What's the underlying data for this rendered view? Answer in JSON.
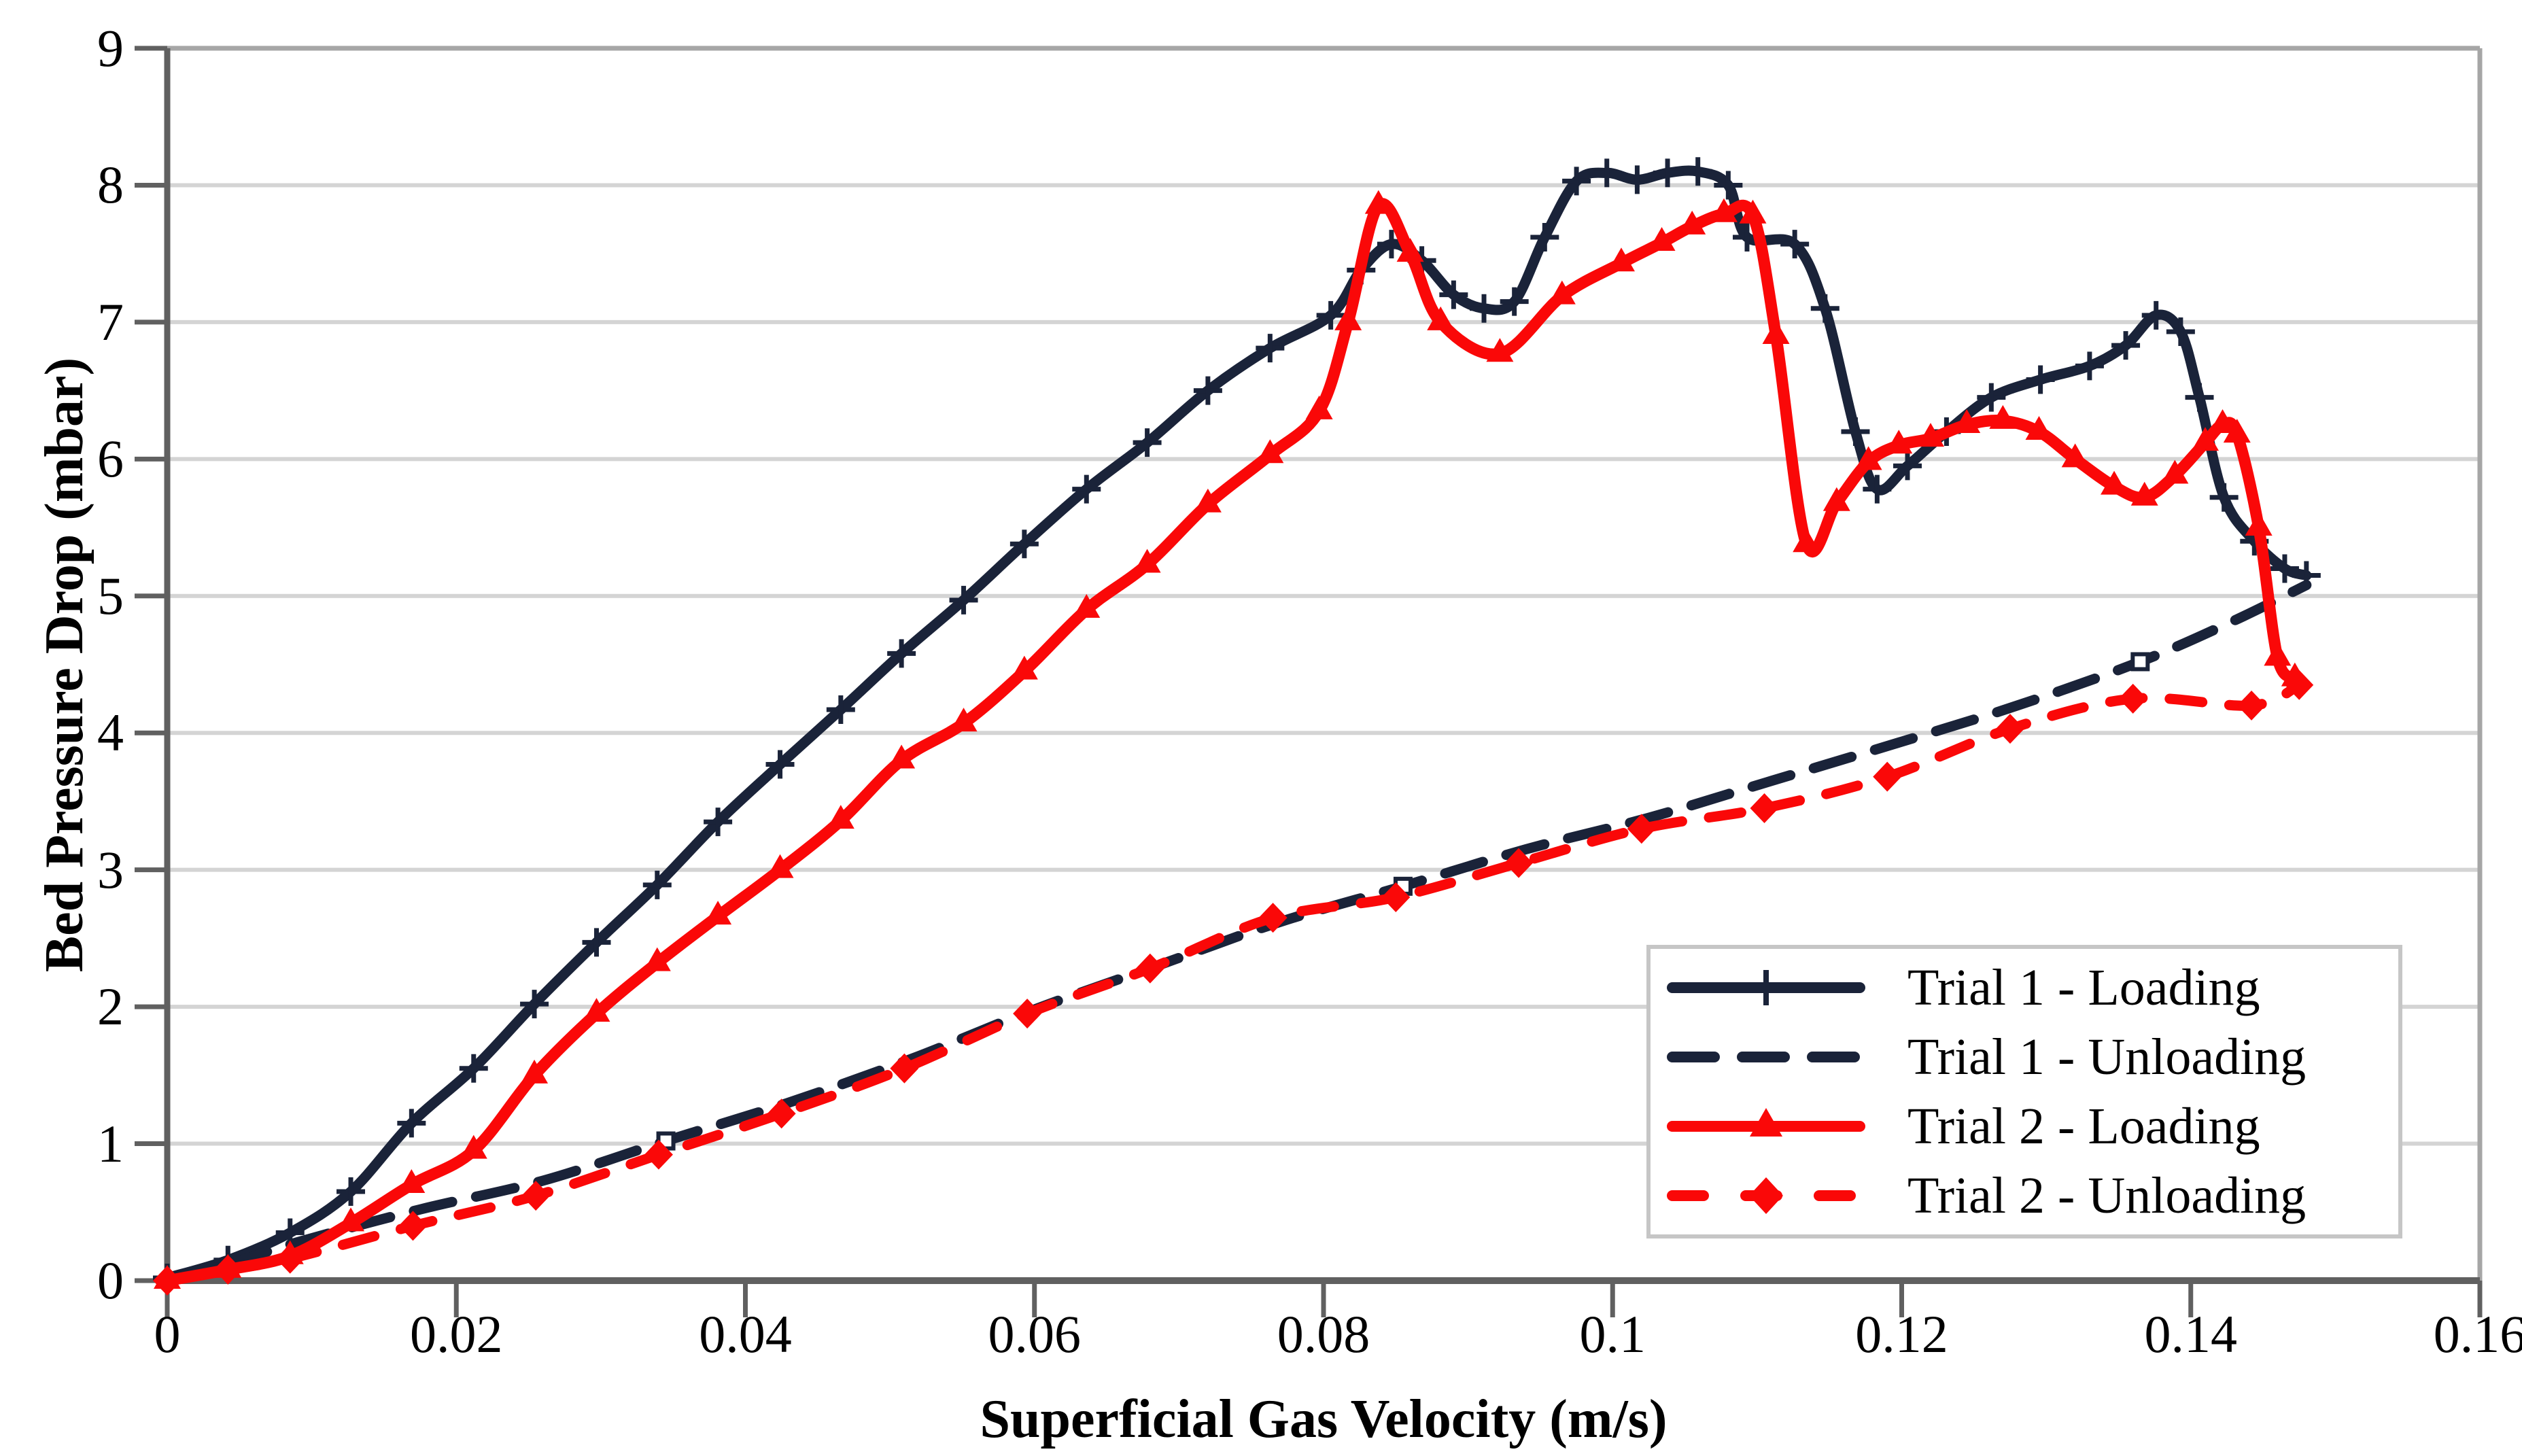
{
  "page": {
    "background": "#ffffff"
  },
  "colors": {
    "trial1": "#1a2339",
    "trial2": "#fa0808",
    "gridline": "#d4d4d4",
    "plot_border": "#a6a6a6",
    "axis_line": "#606060",
    "legend_border": "#c6c6c6",
    "text": "#000000"
  },
  "chart_data": {
    "type": "line",
    "title": "",
    "xlabel": "Superficial Gas Velocity (m/s)",
    "ylabel": "Bed Pressure Drop (mbar)",
    "xlim": [
      0,
      0.16
    ],
    "ylim": [
      0,
      9
    ],
    "x_ticks": [
      0,
      0.02,
      0.04,
      0.06,
      0.08,
      0.1,
      0.12,
      0.14,
      0.16
    ],
    "x_tick_labels": [
      "0",
      "0.02",
      "0.04",
      "0.06",
      "0.08",
      "0.1",
      "0.12",
      "0.14",
      "0.16"
    ],
    "y_ticks": [
      0,
      1,
      2,
      3,
      4,
      5,
      6,
      7,
      8,
      9
    ],
    "y_tick_labels": [
      "0",
      "1",
      "2",
      "3",
      "4",
      "5",
      "6",
      "7",
      "8",
      "9"
    ],
    "grid": true,
    "legend_position": "inside lower right",
    "series": [
      {
        "name": "Trial 1 - Loading",
        "color": "#1a2339",
        "line_style": "solid",
        "marker": "plus",
        "marker_every": 1,
        "marker_offset": 0,
        "points": [
          [
            0,
            0.02
          ],
          [
            0.0042,
            0.15
          ],
          [
            0.0085,
            0.35
          ],
          [
            0.0127,
            0.65
          ],
          [
            0.0169,
            1.15
          ],
          [
            0.0212,
            1.55
          ],
          [
            0.0254,
            2.02
          ],
          [
            0.0297,
            2.47
          ],
          [
            0.0339,
            2.89
          ],
          [
            0.0381,
            3.35
          ],
          [
            0.0424,
            3.77
          ],
          [
            0.0466,
            4.17
          ],
          [
            0.0508,
            4.58
          ],
          [
            0.0551,
            4.97
          ],
          [
            0.0593,
            5.38
          ],
          [
            0.0636,
            5.78
          ],
          [
            0.0678,
            6.12
          ],
          [
            0.072,
            6.5
          ],
          [
            0.0763,
            6.81
          ],
          [
            0.0805,
            7.05
          ],
          [
            0.0826,
            7.38
          ],
          [
            0.0847,
            7.57
          ],
          [
            0.0868,
            7.45
          ],
          [
            0.089,
            7.2
          ],
          [
            0.0911,
            7.1
          ],
          [
            0.0932,
            7.15
          ],
          [
            0.0953,
            7.62
          ],
          [
            0.0975,
            8.03
          ],
          [
            0.0996,
            8.09
          ],
          [
            0.1017,
            8.04
          ],
          [
            0.1038,
            8.09
          ],
          [
            0.1059,
            8.1
          ],
          [
            0.108,
            8.0
          ],
          [
            0.1093,
            7.62
          ],
          [
            0.1126,
            7.57
          ],
          [
            0.1147,
            7.1
          ],
          [
            0.1168,
            6.2
          ],
          [
            0.1183,
            5.78
          ],
          [
            0.1204,
            5.95
          ],
          [
            0.1231,
            6.2
          ],
          [
            0.1262,
            6.45
          ],
          [
            0.1296,
            6.58
          ],
          [
            0.133,
            6.68
          ],
          [
            0.1355,
            6.83
          ],
          [
            0.1376,
            7.05
          ],
          [
            0.1393,
            6.93
          ],
          [
            0.1406,
            6.45
          ],
          [
            0.1423,
            5.72
          ],
          [
            0.1444,
            5.4
          ],
          [
            0.1465,
            5.2
          ],
          [
            0.148,
            5.15
          ]
        ]
      },
      {
        "name": "Trial 1 - Unloading",
        "color": "#1a2339",
        "line_style": "dashed",
        "marker": "square-open",
        "marker_every": 6,
        "marker_offset": 5,
        "points": [
          [
            0,
            0.02
          ],
          [
            0.0045,
            0.13
          ],
          [
            0.009,
            0.28
          ],
          [
            0.0175,
            0.52
          ],
          [
            0.026,
            0.73
          ],
          [
            0.0345,
            1.02
          ],
          [
            0.043,
            1.3
          ],
          [
            0.0515,
            1.62
          ],
          [
            0.06,
            1.98
          ],
          [
            0.0685,
            2.3
          ],
          [
            0.077,
            2.62
          ],
          [
            0.0855,
            2.88
          ],
          [
            0.094,
            3.15
          ],
          [
            0.1025,
            3.38
          ],
          [
            0.111,
            3.65
          ],
          [
            0.1195,
            3.92
          ],
          [
            0.128,
            4.2
          ],
          [
            0.1365,
            4.52
          ],
          [
            0.143,
            4.82
          ],
          [
            0.148,
            5.08
          ]
        ]
      },
      {
        "name": "Trial 2 - Loading",
        "color": "#fa0808",
        "line_style": "solid",
        "marker": "triangle",
        "marker_every": 1,
        "marker_offset": 0,
        "points": [
          [
            0,
            0.0
          ],
          [
            0.0042,
            0.08
          ],
          [
            0.0085,
            0.18
          ],
          [
            0.0127,
            0.42
          ],
          [
            0.0169,
            0.7
          ],
          [
            0.0212,
            0.95
          ],
          [
            0.0254,
            1.5
          ],
          [
            0.0297,
            1.95
          ],
          [
            0.0339,
            2.32
          ],
          [
            0.0381,
            2.66
          ],
          [
            0.0424,
            3.0
          ],
          [
            0.0466,
            3.36
          ],
          [
            0.0508,
            3.8
          ],
          [
            0.0551,
            4.07
          ],
          [
            0.0593,
            4.45
          ],
          [
            0.0636,
            4.9
          ],
          [
            0.0678,
            5.23
          ],
          [
            0.072,
            5.67
          ],
          [
            0.0763,
            6.03
          ],
          [
            0.0797,
            6.35
          ],
          [
            0.0817,
            7.0
          ],
          [
            0.0838,
            7.85
          ],
          [
            0.086,
            7.5
          ],
          [
            0.0881,
            7.0
          ],
          [
            0.0922,
            6.77
          ],
          [
            0.0965,
            7.19
          ],
          [
            0.1006,
            7.43
          ],
          [
            0.1034,
            7.58
          ],
          [
            0.1055,
            7.7
          ],
          [
            0.1077,
            7.79
          ],
          [
            0.1097,
            7.78
          ],
          [
            0.1113,
            6.9
          ],
          [
            0.1134,
            5.38
          ],
          [
            0.1155,
            5.68
          ],
          [
            0.1177,
            5.98
          ],
          [
            0.1198,
            6.1
          ],
          [
            0.122,
            6.15
          ],
          [
            0.1245,
            6.25
          ],
          [
            0.127,
            6.28
          ],
          [
            0.1295,
            6.2
          ],
          [
            0.132,
            6.0
          ],
          [
            0.1347,
            5.8
          ],
          [
            0.1368,
            5.72
          ],
          [
            0.1389,
            5.88
          ],
          [
            0.141,
            6.12
          ],
          [
            0.1422,
            6.25
          ],
          [
            0.1432,
            6.18
          ],
          [
            0.1447,
            5.5
          ],
          [
            0.146,
            4.55
          ],
          [
            0.1472,
            4.4
          ]
        ]
      },
      {
        "name": "Trial 2 - Unloading",
        "color": "#fa0808",
        "line_style": "dashed",
        "marker": "diamond",
        "marker_every": 1,
        "marker_offset": 0,
        "points": [
          [
            0,
            0.0
          ],
          [
            0.0042,
            0.08
          ],
          [
            0.0085,
            0.16
          ],
          [
            0.017,
            0.4
          ],
          [
            0.0255,
            0.62
          ],
          [
            0.034,
            0.92
          ],
          [
            0.0425,
            1.22
          ],
          [
            0.051,
            1.55
          ],
          [
            0.0595,
            1.95
          ],
          [
            0.068,
            2.28
          ],
          [
            0.0765,
            2.65
          ],
          [
            0.085,
            2.8
          ],
          [
            0.0935,
            3.05
          ],
          [
            0.102,
            3.3
          ],
          [
            0.1105,
            3.45
          ],
          [
            0.119,
            3.68
          ],
          [
            0.1275,
            4.03
          ],
          [
            0.136,
            4.25
          ],
          [
            0.1442,
            4.2
          ],
          [
            0.1475,
            4.35
          ]
        ]
      }
    ]
  }
}
